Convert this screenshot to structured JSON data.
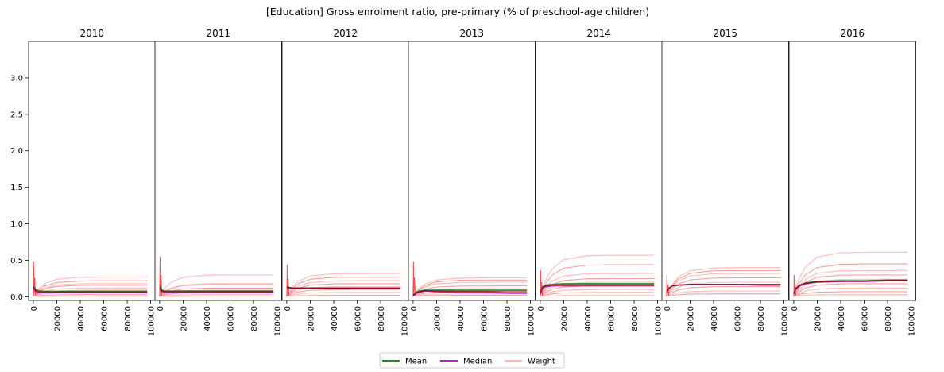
{
  "chart_data": {
    "type": "line",
    "title": "[Education] Gross enrolment ratio, pre-primary (% of preschool-age children)",
    "panels": [
      "2010",
      "2011",
      "2012",
      "2013",
      "2014",
      "2015",
      "2016"
    ],
    "x_ticks": [
      "0",
      "20000",
      "40000",
      "60000",
      "80000",
      "100000"
    ],
    "xlim": [
      -4000,
      104000
    ],
    "y_ticks": [
      "0.0",
      "0.5",
      "1.0",
      "1.5",
      "2.0",
      "2.5",
      "3.0"
    ],
    "ylim": [
      -0.05,
      3.5
    ],
    "x_points": [
      0,
      2000,
      5000,
      10000,
      20000,
      40000,
      60000,
      80000,
      97000
    ],
    "legend_position": "bottom-center",
    "legend": [
      {
        "name": "Mean",
        "color": "#228b22"
      },
      {
        "name": "Median",
        "color": "#c020c0"
      },
      {
        "name": "Weight",
        "color": "#ffb6b6"
      }
    ],
    "series": [
      {
        "year": "2010",
        "mean": [
          0.15,
          0.1,
          0.08,
          0.075,
          0.075,
          0.075,
          0.075,
          0.075,
          0.075
        ],
        "median": [
          0.12,
          0.07,
          0.06,
          0.06,
          0.06,
          0.06,
          0.06,
          0.06,
          0.06
        ],
        "weight_levels": [
          0.27,
          0.22,
          0.18,
          0.16,
          0.12,
          0.09,
          0.06,
          0.03,
          0.01
        ]
      },
      {
        "year": "2011",
        "mean": [
          0.16,
          0.09,
          0.08,
          0.08,
          0.08,
          0.08,
          0.08,
          0.08,
          0.08
        ],
        "median": [
          0.1,
          0.07,
          0.06,
          0.06,
          0.06,
          0.06,
          0.06,
          0.06,
          0.06
        ],
        "weight_levels": [
          0.3,
          0.18,
          0.17,
          0.12,
          0.09,
          0.06,
          0.03,
          0.01
        ]
      },
      {
        "year": "2012",
        "mean": [
          0.14,
          0.13,
          0.12,
          0.12,
          0.12,
          0.12,
          0.12,
          0.12,
          0.12
        ],
        "median": [
          0.13,
          0.12,
          0.12,
          0.12,
          0.12,
          0.12,
          0.12,
          0.12,
          0.12
        ],
        "weight_levels": [
          0.32,
          0.27,
          0.22,
          0.18,
          0.14,
          0.1,
          0.06,
          0.02
        ]
      },
      {
        "year": "2013",
        "mean": [
          0.02,
          0.06,
          0.08,
          0.09,
          0.09,
          0.09,
          0.09,
          0.09,
          0.09
        ],
        "median": [
          0.01,
          0.04,
          0.06,
          0.08,
          0.07,
          0.06,
          0.06,
          0.05,
          0.05
        ],
        "weight_levels": [
          0.26,
          0.23,
          0.2,
          0.15,
          0.11,
          0.07,
          0.04,
          0.02
        ]
      },
      {
        "year": "2014",
        "mean": [
          0.05,
          0.14,
          0.16,
          0.17,
          0.18,
          0.18,
          0.18,
          0.18,
          0.18
        ],
        "median": [
          0.04,
          0.12,
          0.14,
          0.15,
          0.15,
          0.15,
          0.15,
          0.15,
          0.15
        ],
        "weight_levels": [
          0.57,
          0.44,
          0.32,
          0.25,
          0.2,
          0.15,
          0.1,
          0.06,
          0.02
        ]
      },
      {
        "year": "2015",
        "mean": [
          0.06,
          0.12,
          0.15,
          0.16,
          0.17,
          0.17,
          0.17,
          0.17,
          0.17
        ],
        "median": [
          0.06,
          0.12,
          0.15,
          0.16,
          0.17,
          0.17,
          0.17,
          0.16,
          0.16
        ],
        "weight_levels": [
          0.4,
          0.36,
          0.32,
          0.26,
          0.2,
          0.14,
          0.08,
          0.04
        ]
      },
      {
        "year": "2016",
        "mean": [
          0.05,
          0.12,
          0.16,
          0.19,
          0.21,
          0.22,
          0.22,
          0.23,
          0.23
        ],
        "median": [
          0.04,
          0.11,
          0.15,
          0.18,
          0.2,
          0.21,
          0.21,
          0.22,
          0.22
        ],
        "weight_levels": [
          0.61,
          0.45,
          0.36,
          0.3,
          0.24,
          0.18,
          0.12,
          0.07,
          0.03
        ]
      }
    ]
  }
}
